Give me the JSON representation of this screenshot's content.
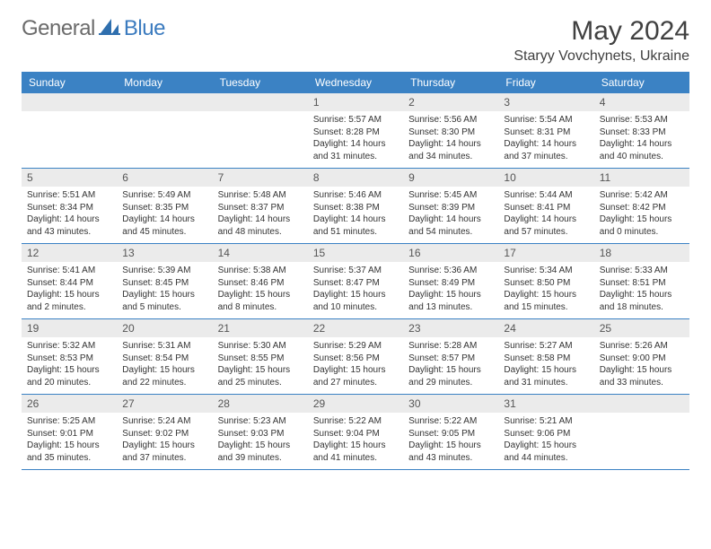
{
  "logo": {
    "general": "General",
    "blue": "Blue"
  },
  "header": {
    "title": "May 2024",
    "location": "Staryy Vovchynets, Ukraine"
  },
  "colors": {
    "header_bar": "#3b82c4",
    "header_text": "#ffffff",
    "day_num_bg": "#ebebeb",
    "day_num_fg": "#555555",
    "body_text": "#333333",
    "rule": "#3b82c4",
    "logo_gray": "#6b6b6b",
    "logo_blue": "#3b7bbf"
  },
  "typography": {
    "title_fontsize": 30,
    "location_fontsize": 16,
    "dow_fontsize": 12,
    "daynum_fontsize": 12,
    "body_fontsize": 10
  },
  "dow": [
    "Sunday",
    "Monday",
    "Tuesday",
    "Wednesday",
    "Thursday",
    "Friday",
    "Saturday"
  ],
  "weeks": [
    [
      null,
      null,
      null,
      {
        "n": "1",
        "sunrise": "5:57 AM",
        "sunset": "8:28 PM",
        "daylight": "14 hours and 31 minutes."
      },
      {
        "n": "2",
        "sunrise": "5:56 AM",
        "sunset": "8:30 PM",
        "daylight": "14 hours and 34 minutes."
      },
      {
        "n": "3",
        "sunrise": "5:54 AM",
        "sunset": "8:31 PM",
        "daylight": "14 hours and 37 minutes."
      },
      {
        "n": "4",
        "sunrise": "5:53 AM",
        "sunset": "8:33 PM",
        "daylight": "14 hours and 40 minutes."
      }
    ],
    [
      {
        "n": "5",
        "sunrise": "5:51 AM",
        "sunset": "8:34 PM",
        "daylight": "14 hours and 43 minutes."
      },
      {
        "n": "6",
        "sunrise": "5:49 AM",
        "sunset": "8:35 PM",
        "daylight": "14 hours and 45 minutes."
      },
      {
        "n": "7",
        "sunrise": "5:48 AM",
        "sunset": "8:37 PM",
        "daylight": "14 hours and 48 minutes."
      },
      {
        "n": "8",
        "sunrise": "5:46 AM",
        "sunset": "8:38 PM",
        "daylight": "14 hours and 51 minutes."
      },
      {
        "n": "9",
        "sunrise": "5:45 AM",
        "sunset": "8:39 PM",
        "daylight": "14 hours and 54 minutes."
      },
      {
        "n": "10",
        "sunrise": "5:44 AM",
        "sunset": "8:41 PM",
        "daylight": "14 hours and 57 minutes."
      },
      {
        "n": "11",
        "sunrise": "5:42 AM",
        "sunset": "8:42 PM",
        "daylight": "15 hours and 0 minutes."
      }
    ],
    [
      {
        "n": "12",
        "sunrise": "5:41 AM",
        "sunset": "8:44 PM",
        "daylight": "15 hours and 2 minutes."
      },
      {
        "n": "13",
        "sunrise": "5:39 AM",
        "sunset": "8:45 PM",
        "daylight": "15 hours and 5 minutes."
      },
      {
        "n": "14",
        "sunrise": "5:38 AM",
        "sunset": "8:46 PM",
        "daylight": "15 hours and 8 minutes."
      },
      {
        "n": "15",
        "sunrise": "5:37 AM",
        "sunset": "8:47 PM",
        "daylight": "15 hours and 10 minutes."
      },
      {
        "n": "16",
        "sunrise": "5:36 AM",
        "sunset": "8:49 PM",
        "daylight": "15 hours and 13 minutes."
      },
      {
        "n": "17",
        "sunrise": "5:34 AM",
        "sunset": "8:50 PM",
        "daylight": "15 hours and 15 minutes."
      },
      {
        "n": "18",
        "sunrise": "5:33 AM",
        "sunset": "8:51 PM",
        "daylight": "15 hours and 18 minutes."
      }
    ],
    [
      {
        "n": "19",
        "sunrise": "5:32 AM",
        "sunset": "8:53 PM",
        "daylight": "15 hours and 20 minutes."
      },
      {
        "n": "20",
        "sunrise": "5:31 AM",
        "sunset": "8:54 PM",
        "daylight": "15 hours and 22 minutes."
      },
      {
        "n": "21",
        "sunrise": "5:30 AM",
        "sunset": "8:55 PM",
        "daylight": "15 hours and 25 minutes."
      },
      {
        "n": "22",
        "sunrise": "5:29 AM",
        "sunset": "8:56 PM",
        "daylight": "15 hours and 27 minutes."
      },
      {
        "n": "23",
        "sunrise": "5:28 AM",
        "sunset": "8:57 PM",
        "daylight": "15 hours and 29 minutes."
      },
      {
        "n": "24",
        "sunrise": "5:27 AM",
        "sunset": "8:58 PM",
        "daylight": "15 hours and 31 minutes."
      },
      {
        "n": "25",
        "sunrise": "5:26 AM",
        "sunset": "9:00 PM",
        "daylight": "15 hours and 33 minutes."
      }
    ],
    [
      {
        "n": "26",
        "sunrise": "5:25 AM",
        "sunset": "9:01 PM",
        "daylight": "15 hours and 35 minutes."
      },
      {
        "n": "27",
        "sunrise": "5:24 AM",
        "sunset": "9:02 PM",
        "daylight": "15 hours and 37 minutes."
      },
      {
        "n": "28",
        "sunrise": "5:23 AM",
        "sunset": "9:03 PM",
        "daylight": "15 hours and 39 minutes."
      },
      {
        "n": "29",
        "sunrise": "5:22 AM",
        "sunset": "9:04 PM",
        "daylight": "15 hours and 41 minutes."
      },
      {
        "n": "30",
        "sunrise": "5:22 AM",
        "sunset": "9:05 PM",
        "daylight": "15 hours and 43 minutes."
      },
      {
        "n": "31",
        "sunrise": "5:21 AM",
        "sunset": "9:06 PM",
        "daylight": "15 hours and 44 minutes."
      },
      null
    ]
  ],
  "labels": {
    "sunrise": "Sunrise: ",
    "sunset": "Sunset: ",
    "daylight": "Daylight: "
  }
}
